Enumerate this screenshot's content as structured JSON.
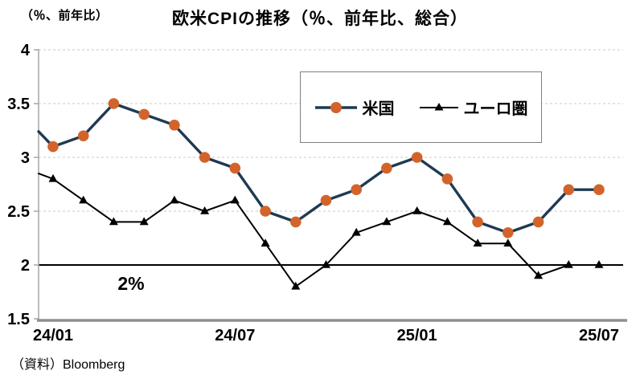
{
  "header": {
    "unit_label": "（％、前年比）",
    "title": "欧米CPIの推移（％、前年比、総合）"
  },
  "footer": {
    "source": "（資料）Bloomberg"
  },
  "colors": {
    "us_line": "#1F3A52",
    "us_marker": "#D2642B",
    "euro_line": "#000000",
    "euro_marker": "#000000",
    "gridline": "#C9C9C9",
    "y_axis": "#A6A6A6",
    "x_axis": "#8F8F8F",
    "reference_line": "#000000",
    "legend_border": "#7F7F7F",
    "text": "#000000"
  },
  "chart_data": {
    "type": "line",
    "title": "欧米CPIの推移（％、前年比、総合）",
    "xlabel": "",
    "ylabel": "（％、前年比）",
    "ylim": [
      1.5,
      4
    ],
    "y_ticks": [
      1.5,
      2,
      2.5,
      3,
      3.5,
      4
    ],
    "y_gridline_values": [
      2,
      2.5,
      3,
      3.5,
      4
    ],
    "grid": "horizontal-dashed",
    "legend_position": "top-center-inside",
    "x": [
      "24/01",
      "24/02",
      "24/03",
      "24/04",
      "24/05",
      "24/06",
      "24/07",
      "24/08",
      "24/09",
      "24/10",
      "24/11",
      "24/12",
      "25/01",
      "25/02",
      "25/03",
      "25/04",
      "25/05",
      "25/06",
      "25/07"
    ],
    "x_tick_labels": [
      "24/01",
      "24/07",
      "25/01",
      "25/07"
    ],
    "x_tick_indices": [
      0,
      6,
      12,
      18
    ],
    "series": [
      {
        "name": "ユーロ圏",
        "marker": "triangle",
        "values": [
          2.8,
          2.6,
          2.4,
          2.4,
          2.6,
          2.5,
          2.6,
          2.2,
          1.8,
          2.0,
          2.3,
          2.4,
          2.5,
          2.4,
          2.2,
          2.2,
          1.9,
          2.0,
          2.0
        ],
        "axis_edge_lead_in": 2.85
      },
      {
        "name": "米国",
        "marker": "circle",
        "values": [
          3.1,
          3.2,
          3.5,
          3.4,
          3.3,
          3.0,
          2.9,
          2.5,
          2.4,
          2.6,
          2.7,
          2.9,
          3.0,
          2.8,
          2.4,
          2.3,
          2.4,
          2.7,
          2.7
        ],
        "axis_edge_lead_in": 3.24
      }
    ],
    "reference_line": {
      "value": 2.0,
      "label": "2%"
    }
  }
}
